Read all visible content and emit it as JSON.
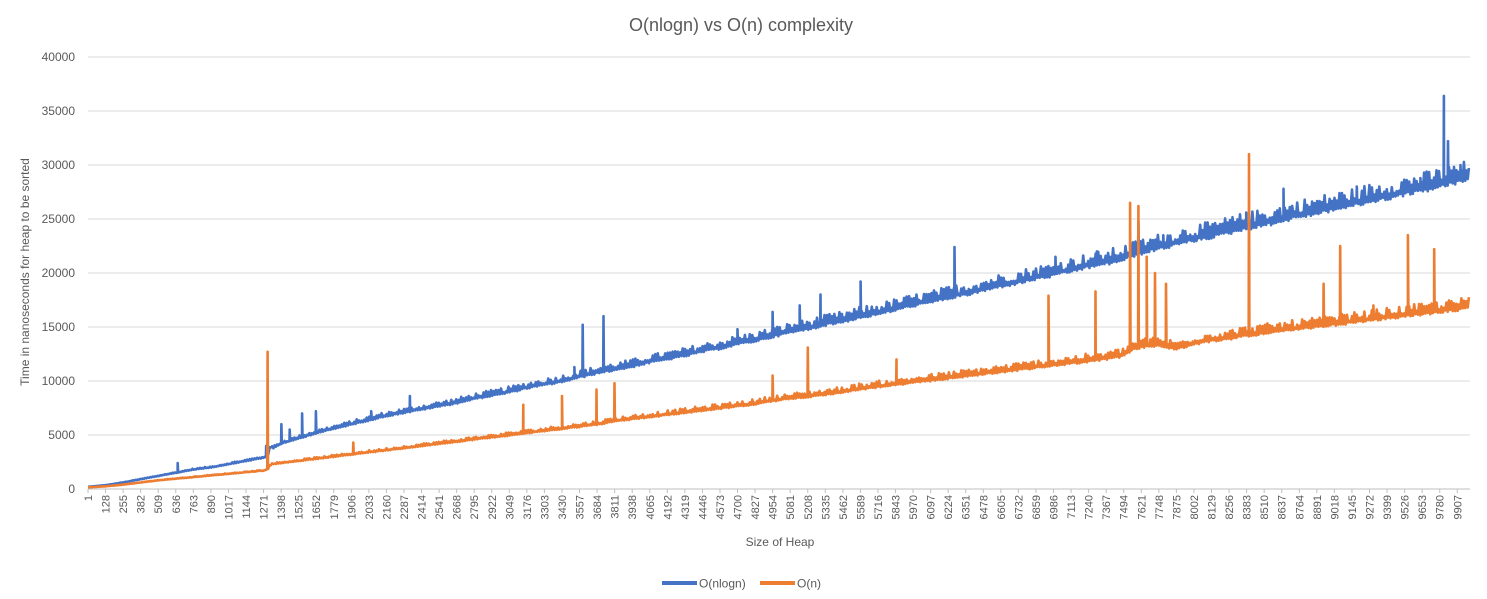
{
  "chart_data": {
    "type": "line",
    "title": "O(nlogn) vs O(n) complexity",
    "xlabel": "Size of Heap",
    "ylabel": "Time in nanoseconds  for heap to be sorted",
    "ylim": [
      0,
      40000
    ],
    "yticks": [
      0,
      5000,
      10000,
      15000,
      20000,
      25000,
      30000,
      35000,
      40000
    ],
    "xlim": [
      1,
      9999
    ],
    "xticks": [
      "1",
      "128",
      "255",
      "382",
      "509",
      "636",
      "763",
      "890",
      "1017",
      "1144",
      "1271",
      "1398",
      "1525",
      "1652",
      "1779",
      "1906",
      "2033",
      "2160",
      "2287",
      "2414",
      "2541",
      "2668",
      "2795",
      "2922",
      "3049",
      "3176",
      "3303",
      "3430",
      "3557",
      "3684",
      "3811",
      "3938",
      "4065",
      "4192",
      "4319",
      "4446",
      "4573",
      "4700",
      "4827",
      "4954",
      "5081",
      "5208",
      "5335",
      "5462",
      "5589",
      "5716",
      "5843",
      "5970",
      "6097",
      "6224",
      "6351",
      "6478",
      "6605",
      "6732",
      "6859",
      "6986",
      "7113",
      "7240",
      "7367",
      "7494",
      "7621",
      "7748",
      "7875",
      "8002",
      "8129",
      "8256",
      "8383",
      "8510",
      "8637",
      "8764",
      "8891",
      "9018",
      "9145",
      "9272",
      "9399",
      "9526",
      "9653",
      "9780",
      "9907"
    ],
    "grid": "horizontal",
    "legend": "bottom",
    "series": [
      {
        "name": "O(nlogn)",
        "color": "#4472C4",
        "points": [
          [
            1,
            200
          ],
          [
            128,
            350
          ],
          [
            255,
            600
          ],
          [
            382,
            900
          ],
          [
            509,
            1200
          ],
          [
            636,
            1500
          ],
          [
            763,
            1800
          ],
          [
            890,
            2000
          ],
          [
            1017,
            2300
          ],
          [
            1144,
            2600
          ],
          [
            1271,
            2900
          ],
          [
            1300,
            3000
          ],
          [
            1320,
            3900
          ],
          [
            1340,
            3800
          ],
          [
            1398,
            4200
          ],
          [
            1525,
            4700
          ],
          [
            1652,
            5200
          ],
          [
            1779,
            5600
          ],
          [
            1906,
            6000
          ],
          [
            2033,
            6400
          ],
          [
            2160,
            6800
          ],
          [
            2287,
            7100
          ],
          [
            2414,
            7400
          ],
          [
            2541,
            7700
          ],
          [
            2668,
            8000
          ],
          [
            2795,
            8400
          ],
          [
            2922,
            8700
          ],
          [
            3049,
            9000
          ],
          [
            3176,
            9400
          ],
          [
            3303,
            9700
          ],
          [
            3430,
            10000
          ],
          [
            3557,
            10400
          ],
          [
            3684,
            10800
          ],
          [
            3811,
            11100
          ],
          [
            3938,
            11400
          ],
          [
            4065,
            11800
          ],
          [
            4192,
            12100
          ],
          [
            4319,
            12400
          ],
          [
            4446,
            12800
          ],
          [
            4573,
            13100
          ],
          [
            4700,
            13500
          ],
          [
            4827,
            13800
          ],
          [
            4954,
            14200
          ],
          [
            5081,
            14600
          ],
          [
            5208,
            14900
          ],
          [
            5335,
            15300
          ],
          [
            5462,
            15600
          ],
          [
            5589,
            16000
          ],
          [
            5716,
            16300
          ],
          [
            5843,
            16700
          ],
          [
            5970,
            17100
          ],
          [
            6097,
            17400
          ],
          [
            6224,
            17800
          ],
          [
            6351,
            18100
          ],
          [
            6478,
            18500
          ],
          [
            6605,
            18900
          ],
          [
            6732,
            19200
          ],
          [
            6859,
            19600
          ],
          [
            6986,
            19900
          ],
          [
            7113,
            20300
          ],
          [
            7240,
            20700
          ],
          [
            7367,
            21000
          ],
          [
            7494,
            21400
          ],
          [
            7621,
            22000
          ],
          [
            7748,
            22400
          ],
          [
            7875,
            22800
          ],
          [
            8002,
            23200
          ],
          [
            8129,
            23500
          ],
          [
            8256,
            23900
          ],
          [
            8383,
            24300
          ],
          [
            8510,
            24600
          ],
          [
            8637,
            25000
          ],
          [
            8764,
            25400
          ],
          [
            8891,
            25700
          ],
          [
            9018,
            26100
          ],
          [
            9145,
            26400
          ],
          [
            9272,
            26800
          ],
          [
            9399,
            27100
          ],
          [
            9526,
            27500
          ],
          [
            9653,
            27800
          ],
          [
            9780,
            28200
          ],
          [
            9907,
            28600
          ],
          [
            9999,
            28900
          ]
        ],
        "spikes": [
          [
            650,
            2400
          ],
          [
            1290,
            4000
          ],
          [
            1400,
            6000
          ],
          [
            1460,
            5500
          ],
          [
            1550,
            7000
          ],
          [
            1650,
            7200
          ],
          [
            2050,
            7200
          ],
          [
            2330,
            8600
          ],
          [
            3520,
            11300
          ],
          [
            3580,
            15200
          ],
          [
            3730,
            16000
          ],
          [
            4700,
            14800
          ],
          [
            4954,
            16400
          ],
          [
            5150,
            17000
          ],
          [
            5300,
            18000
          ],
          [
            5590,
            19200
          ],
          [
            6270,
            22400
          ],
          [
            7000,
            21500
          ],
          [
            7300,
            22000
          ],
          [
            7600,
            24800
          ],
          [
            7780,
            23500
          ],
          [
            8380,
            25600
          ],
          [
            8650,
            27800
          ],
          [
            9180,
            28000
          ],
          [
            9640,
            28800
          ],
          [
            9810,
            36400
          ],
          [
            9840,
            32200
          ],
          [
            9930,
            30000
          ]
        ]
      },
      {
        "name": "O(n)",
        "color": "#ED7D31",
        "points": [
          [
            1,
            150
          ],
          [
            128,
            250
          ],
          [
            255,
            400
          ],
          [
            382,
            600
          ],
          [
            509,
            800
          ],
          [
            636,
            950
          ],
          [
            763,
            1100
          ],
          [
            890,
            1250
          ],
          [
            1017,
            1400
          ],
          [
            1144,
            1550
          ],
          [
            1271,
            1700
          ],
          [
            1300,
            1850
          ],
          [
            1330,
            2300
          ],
          [
            1398,
            2400
          ],
          [
            1525,
            2600
          ],
          [
            1652,
            2800
          ],
          [
            1779,
            3000
          ],
          [
            1906,
            3200
          ],
          [
            2033,
            3400
          ],
          [
            2160,
            3600
          ],
          [
            2287,
            3800
          ],
          [
            2414,
            4000
          ],
          [
            2541,
            4200
          ],
          [
            2668,
            4400
          ],
          [
            2795,
            4600
          ],
          [
            2922,
            4800
          ],
          [
            3049,
            5000
          ],
          [
            3176,
            5200
          ],
          [
            3303,
            5400
          ],
          [
            3430,
            5600
          ],
          [
            3557,
            5800
          ],
          [
            3684,
            6000
          ],
          [
            3811,
            6300
          ],
          [
            3938,
            6500
          ],
          [
            4065,
            6700
          ],
          [
            4192,
            6900
          ],
          [
            4319,
            7100
          ],
          [
            4446,
            7300
          ],
          [
            4573,
            7500
          ],
          [
            4700,
            7700
          ],
          [
            4827,
            7900
          ],
          [
            4954,
            8200
          ],
          [
            5081,
            8400
          ],
          [
            5208,
            8600
          ],
          [
            5335,
            8800
          ],
          [
            5462,
            9000
          ],
          [
            5589,
            9300
          ],
          [
            5716,
            9500
          ],
          [
            5843,
            9700
          ],
          [
            5970,
            9900
          ],
          [
            6097,
            10100
          ],
          [
            6224,
            10300
          ],
          [
            6351,
            10500
          ],
          [
            6478,
            10700
          ],
          [
            6605,
            10900
          ],
          [
            6732,
            11100
          ],
          [
            6859,
            11300
          ],
          [
            6986,
            11500
          ],
          [
            7113,
            11700
          ],
          [
            7240,
            11900
          ],
          [
            7367,
            12100
          ],
          [
            7494,
            12400
          ],
          [
            7560,
            13000
          ],
          [
            7621,
            13200
          ],
          [
            7748,
            13400
          ],
          [
            7875,
            13000
          ],
          [
            8002,
            13500
          ],
          [
            8129,
            13800
          ],
          [
            8256,
            14000
          ],
          [
            8383,
            14300
          ],
          [
            8510,
            14500
          ],
          [
            8637,
            14700
          ],
          [
            8764,
            14900
          ],
          [
            8891,
            15100
          ],
          [
            9018,
            15300
          ],
          [
            9145,
            15500
          ],
          [
            9272,
            15700
          ],
          [
            9399,
            15900
          ],
          [
            9526,
            16100
          ],
          [
            9653,
            16300
          ],
          [
            9780,
            16500
          ],
          [
            9907,
            16700
          ],
          [
            9999,
            16900
          ]
        ],
        "spikes": [
          [
            1300,
            12700
          ],
          [
            1920,
            4300
          ],
          [
            3150,
            7800
          ],
          [
            3430,
            8600
          ],
          [
            3680,
            9200
          ],
          [
            3810,
            9800
          ],
          [
            4954,
            10500
          ],
          [
            5208,
            13100
          ],
          [
            5850,
            12000
          ],
          [
            6950,
            17900
          ],
          [
            7290,
            18300
          ],
          [
            7540,
            26500
          ],
          [
            7600,
            26200
          ],
          [
            7660,
            21500
          ],
          [
            7720,
            20000
          ],
          [
            7800,
            19000
          ],
          [
            8400,
            31000
          ],
          [
            8940,
            19000
          ],
          [
            9060,
            22500
          ],
          [
            9300,
            17000
          ],
          [
            9550,
            23500
          ],
          [
            9740,
            22200
          ]
        ]
      }
    ]
  }
}
